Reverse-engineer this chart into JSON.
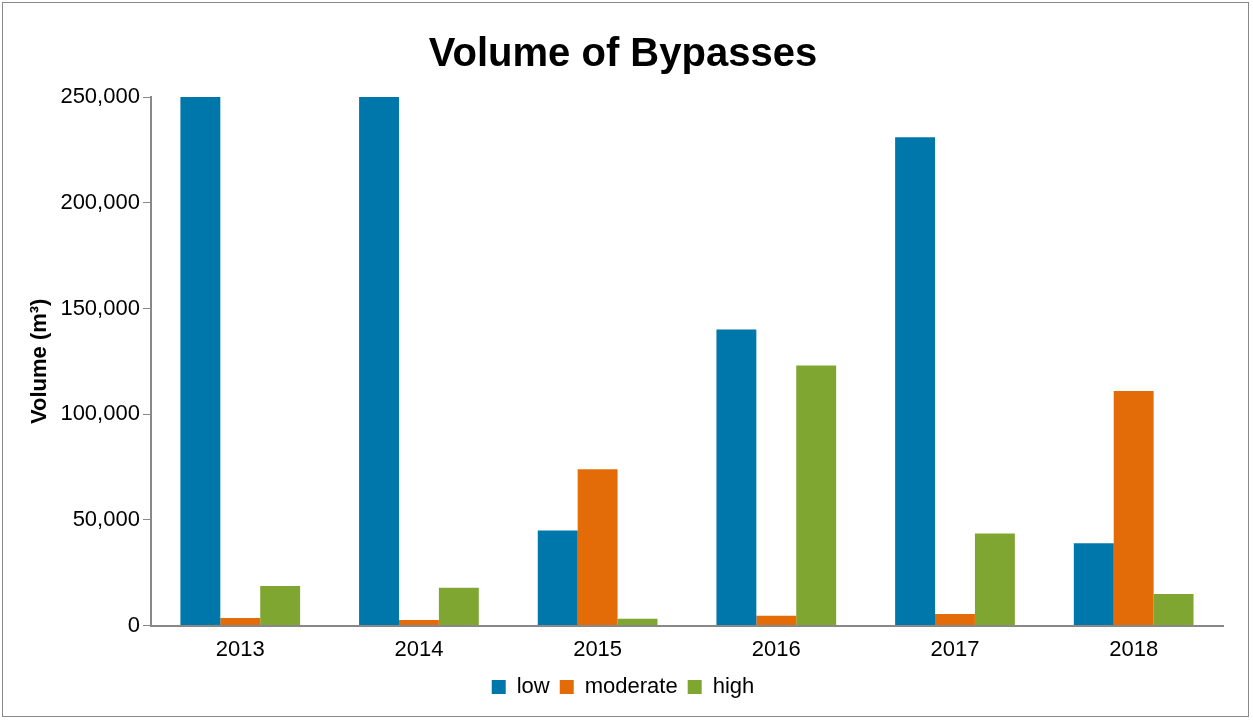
{
  "chart_data": {
    "type": "bar",
    "title": "Volume of Bypasses",
    "ylabel": "Volume (m³)",
    "categories": [
      "2013",
      "2014",
      "2015",
      "2016",
      "2017",
      "2018"
    ],
    "series": [
      {
        "name": "low",
        "color": "#0077aa",
        "values": [
          250000,
          250000,
          45000,
          140000,
          231000,
          39000
        ]
      },
      {
        "name": "moderate",
        "color": "#e36c09",
        "values": [
          3600,
          2700,
          74000,
          4600,
          5500,
          111000
        ]
      },
      {
        "name": "high",
        "color": "#7fa631",
        "values": [
          18700,
          17900,
          3200,
          123000,
          43600,
          15000
        ]
      }
    ],
    "ylim": [
      0,
      250000
    ],
    "yticks": [
      {
        "value": 0,
        "label": "0"
      },
      {
        "value": 50000,
        "label": "50,000"
      },
      {
        "value": 100000,
        "label": "100,000"
      },
      {
        "value": 150000,
        "label": "150,000"
      },
      {
        "value": 200000,
        "label": "200,000"
      },
      {
        "value": 250000,
        "label": "250,000"
      }
    ],
    "grid": false,
    "legend": "bottom"
  }
}
